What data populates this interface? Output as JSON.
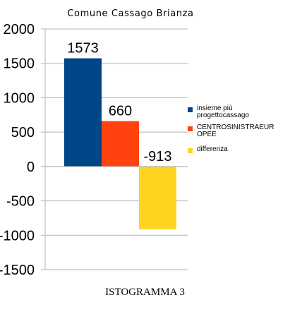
{
  "chart_data": {
    "type": "bar",
    "title": "Comune Cassago Brianza",
    "xlabel": "",
    "ylabel": "",
    "ylim": [
      -1500,
      2000
    ],
    "yticks": [
      2000,
      1500,
      1000,
      500,
      0,
      -500,
      -1000,
      -1500
    ],
    "grid": true,
    "legend_position": "right",
    "series": [
      {
        "name": "insieme più progettocassago",
        "value": 1573,
        "label": "1573",
        "color": "#004586"
      },
      {
        "name": "CENTROSINISTRAEUROPEE",
        "value": 660,
        "label": "660",
        "color": "#ff420e"
      },
      {
        "name": "differenza",
        "value": -913,
        "label": "-913",
        "color": "#ffd320"
      }
    ]
  },
  "caption": "ISTOGRAMMA 3"
}
